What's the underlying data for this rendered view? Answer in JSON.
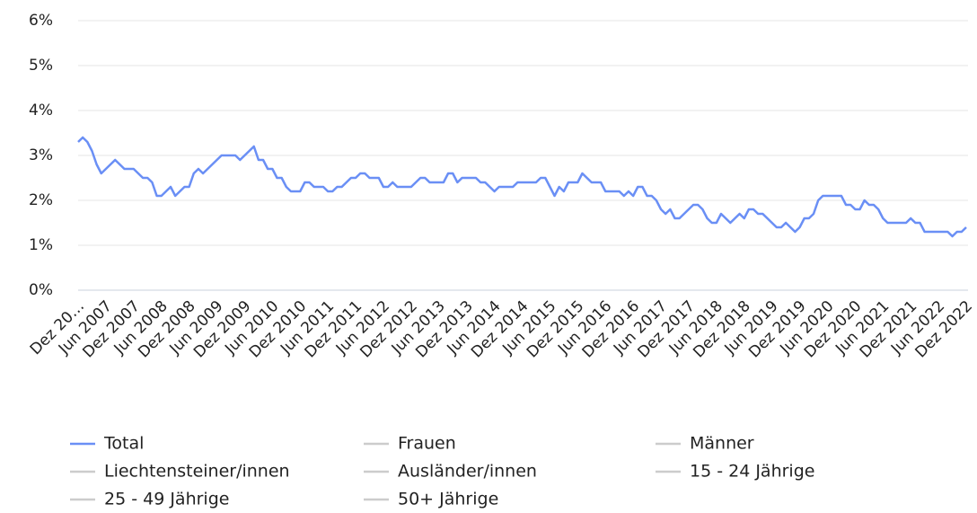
{
  "chart_data": {
    "type": "line",
    "categories": [
      "Dez 20…",
      null,
      null,
      null,
      null,
      null,
      "Jun 2007",
      null,
      null,
      null,
      null,
      null,
      "Dez 2007",
      null,
      null,
      null,
      null,
      null,
      "Jun 2008",
      null,
      null,
      null,
      null,
      null,
      "Dez 2008",
      null,
      null,
      null,
      null,
      null,
      "Jun 2009",
      null,
      null,
      null,
      null,
      null,
      "Dez 2009",
      null,
      null,
      null,
      null,
      null,
      "Jun 2010",
      null,
      null,
      null,
      null,
      null,
      "Dez 2010",
      null,
      null,
      null,
      null,
      null,
      "Jun 2011",
      null,
      null,
      null,
      null,
      null,
      "Dez 2011",
      null,
      null,
      null,
      null,
      null,
      "Jun 2012",
      null,
      null,
      null,
      null,
      null,
      "Dez 2012",
      null,
      null,
      null,
      null,
      null,
      "Jun 2013",
      null,
      null,
      null,
      null,
      null,
      "Dez 2013",
      null,
      null,
      null,
      null,
      null,
      "Jun 2014",
      null,
      null,
      null,
      null,
      null,
      "Dez 2014",
      null,
      null,
      null,
      null,
      null,
      "Jun 2015",
      null,
      null,
      null,
      null,
      null,
      "Dez 2015",
      null,
      null,
      null,
      null,
      null,
      "Jun 2016",
      null,
      null,
      null,
      null,
      null,
      "Dez 2016",
      null,
      null,
      null,
      null,
      null,
      "Jun 2017",
      null,
      null,
      null,
      null,
      null,
      "Dez 2017",
      null,
      null,
      null,
      null,
      null,
      "Jun 2018",
      null,
      null,
      null,
      null,
      null,
      "Dez 2018",
      null,
      null,
      null,
      null,
      null,
      "Jun 2019",
      null,
      null,
      null,
      null,
      null,
      "Dez 2019",
      null,
      null,
      null,
      null,
      null,
      "Jun 2020",
      null,
      null,
      null,
      null,
      null,
      "Dez 2020",
      null,
      null,
      null,
      null,
      null,
      "Jun 2021",
      null,
      null,
      null,
      null,
      null,
      "Dez 2021",
      null,
      null,
      null,
      null,
      null,
      "Jun 2022",
      null,
      null,
      null,
      null,
      null,
      "Dez 2022"
    ],
    "series": [
      {
        "name": "Total",
        "color": "#6a8ff5",
        "visible": true,
        "values": [
          3.3,
          3.4,
          3.3,
          3.1,
          2.8,
          2.6,
          2.7,
          2.8,
          2.9,
          2.8,
          2.7,
          2.7,
          2.7,
          2.6,
          2.5,
          2.5,
          2.4,
          2.1,
          2.1,
          2.2,
          2.3,
          2.1,
          2.2,
          2.3,
          2.3,
          2.6,
          2.7,
          2.6,
          2.7,
          2.8,
          2.9,
          3.0,
          3.0,
          3.0,
          3.0,
          2.9,
          3.0,
          3.1,
          3.2,
          2.9,
          2.9,
          2.7,
          2.7,
          2.5,
          2.5,
          2.3,
          2.2,
          2.2,
          2.2,
          2.4,
          2.4,
          2.3,
          2.3,
          2.3,
          2.2,
          2.2,
          2.3,
          2.3,
          2.4,
          2.5,
          2.5,
          2.6,
          2.6,
          2.5,
          2.5,
          2.5,
          2.3,
          2.3,
          2.4,
          2.3,
          2.3,
          2.3,
          2.3,
          2.4,
          2.5,
          2.5,
          2.4,
          2.4,
          2.4,
          2.4,
          2.6,
          2.6,
          2.4,
          2.5,
          2.5,
          2.5,
          2.5,
          2.4,
          2.4,
          2.3,
          2.2,
          2.3,
          2.3,
          2.3,
          2.3,
          2.4,
          2.4,
          2.4,
          2.4,
          2.4,
          2.5,
          2.5,
          2.3,
          2.1,
          2.3,
          2.2,
          2.4,
          2.4,
          2.4,
          2.6,
          2.5,
          2.4,
          2.4,
          2.4,
          2.2,
          2.2,
          2.2,
          2.2,
          2.1,
          2.2,
          2.1,
          2.3,
          2.3,
          2.1,
          2.1,
          2.0,
          1.8,
          1.7,
          1.8,
          1.6,
          1.6,
          1.7,
          1.8,
          1.9,
          1.9,
          1.8,
          1.6,
          1.5,
          1.5,
          1.7,
          1.6,
          1.5,
          1.6,
          1.7,
          1.6,
          1.8,
          1.8,
          1.7,
          1.7,
          1.6,
          1.5,
          1.4,
          1.4,
          1.5,
          1.4,
          1.3,
          1.4,
          1.6,
          1.6,
          1.7,
          2.0,
          2.1,
          2.1,
          2.1,
          2.1,
          2.1,
          1.9,
          1.9,
          1.8,
          1.8,
          2.0,
          1.9,
          1.9,
          1.8,
          1.6,
          1.5,
          1.5,
          1.5,
          1.5,
          1.5,
          1.6,
          1.5,
          1.5,
          1.3,
          1.3,
          1.3,
          1.3,
          1.3,
          1.3,
          1.2,
          1.3,
          1.3,
          1.4
        ]
      },
      {
        "name": "Frauen",
        "color": "#cccccc",
        "visible": false
      },
      {
        "name": "Männer",
        "color": "#cccccc",
        "visible": false
      },
      {
        "name": "Liechtensteiner/innen",
        "color": "#cccccc",
        "visible": false
      },
      {
        "name": "Ausländer/innen",
        "color": "#cccccc",
        "visible": false
      },
      {
        "name": "15 - 24 Jährige",
        "color": "#cccccc",
        "visible": false
      },
      {
        "name": "25 - 49 Jährige",
        "color": "#cccccc",
        "visible": false
      },
      {
        "name": "50+ Jährige",
        "color": "#cccccc",
        "visible": false
      }
    ],
    "ylim": [
      0,
      6
    ],
    "yticks": [
      {
        "value": 0,
        "label": "0%"
      },
      {
        "value": 1,
        "label": "1%"
      },
      {
        "value": 2,
        "label": "2%"
      },
      {
        "value": 3,
        "label": "3%"
      },
      {
        "value": 4,
        "label": "4%"
      },
      {
        "value": 5,
        "label": "5%"
      },
      {
        "value": 6,
        "label": "6%"
      }
    ],
    "grid": true
  }
}
